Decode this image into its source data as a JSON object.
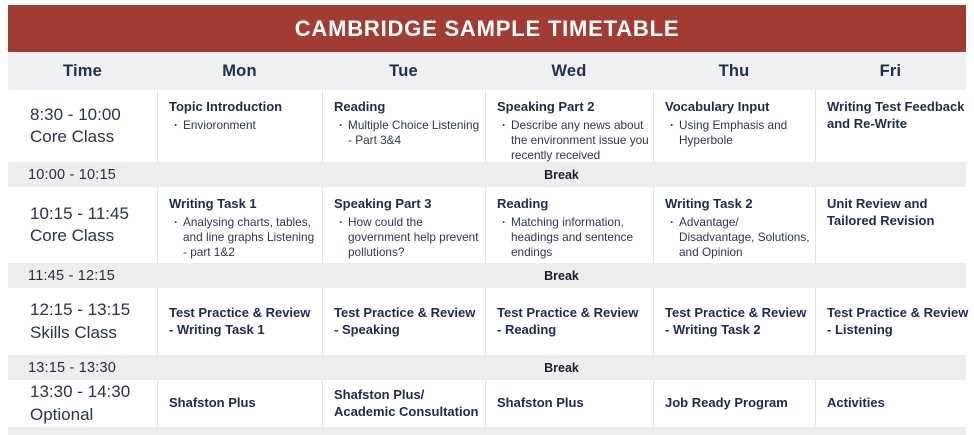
{
  "banner": {
    "title": "CAMBRIDGE SAMPLE TIMETABLE"
  },
  "columns": [
    "Time",
    "Mon",
    "Tue",
    "Wed",
    "Thu",
    "Fri"
  ],
  "rows": [
    {
      "time": "8:30 - 10:00",
      "label": "Core Class",
      "cells": [
        {
          "title": "Topic Introduction",
          "bullet": "Envioronment"
        },
        {
          "title": "Reading",
          "bullet": "Multiple Choice Listening - Part 3&4"
        },
        {
          "title": "Speaking Part 2",
          "bullet": "Describe any news about the environment issue you recently received"
        },
        {
          "title": "Vocabulary Input",
          "bullet": "Using Emphasis and Hyperbole"
        },
        {
          "title": "Writing Test Feedback",
          "title2": "and Re-Write"
        }
      ]
    },
    {
      "break_time": "10:00 - 10:15",
      "break_label": "Break"
    },
    {
      "time": "10:15 - 11:45",
      "label": "Core Class",
      "cells": [
        {
          "title": "Writing Task 1",
          "bullet": "Analysing charts, tables, and line graphs Listening - part 1&2"
        },
        {
          "title": "Speaking Part 3",
          "bullet": "How could the government help prevent pollutions?"
        },
        {
          "title": "Reading",
          "bullet": "Matching information, headings and sentence endings"
        },
        {
          "title": "Writing Task 2",
          "bullet": "Advantage/ Disadvantage, Solutions, and Opinion"
        },
        {
          "title": "Unit Review and",
          "title2": "Tailored Revision"
        }
      ]
    },
    {
      "break_time": "11:45 - 12:15",
      "break_label": "Break"
    },
    {
      "time": "12:15 - 13:15",
      "label": "Skills Class",
      "cells": [
        {
          "title": "Test Practice & Review",
          "title2": "- Writing Task 1"
        },
        {
          "title": "Test Practice & Review",
          "title2": "- Speaking"
        },
        {
          "title": "Test Practice & Review",
          "title2": "- Reading"
        },
        {
          "title": "Test Practice & Review",
          "title2": "- Writing Task 2"
        },
        {
          "title": "Test Practice & Review",
          "title2": "- Listening"
        }
      ]
    },
    {
      "break_time": "13:15 - 13:30",
      "break_label": "Break"
    },
    {
      "time": "13:30 - 14:30",
      "label": "Optional",
      "cells": [
        {
          "title": "Shafston Plus"
        },
        {
          "title": "Shafston Plus/",
          "title2": "Academic Consultation"
        },
        {
          "title": "Shafston Plus"
        },
        {
          "title": "Job Ready Program"
        },
        {
          "title": "Activities"
        }
      ]
    }
  ],
  "colors": {
    "banner_red": "#A23C32",
    "day_header_bg": "#EEF0F3",
    "break_bg": "#ECEDEF",
    "navy_text": "#1C2B4A",
    "separator": "#E2E3E7"
  }
}
